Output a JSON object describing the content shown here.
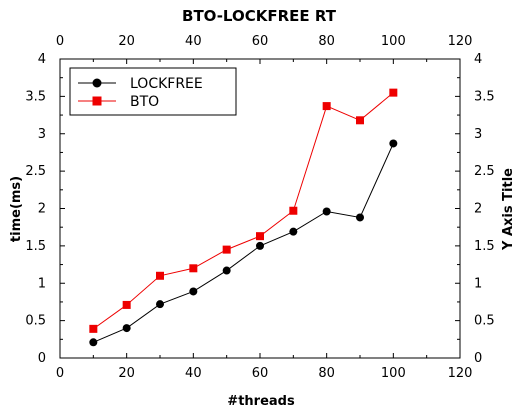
{
  "chart_data": {
    "type": "line",
    "title": "BTO-LOCKFREE RT",
    "xlabel": "#threads",
    "ylabel": "time(ms)",
    "ylabel_right": "Y Axis Title",
    "xlim": [
      0,
      120
    ],
    "ylim": [
      0,
      4
    ],
    "x_ticks": [
      "0",
      "20",
      "40",
      "60",
      "80",
      "100",
      "120"
    ],
    "y_ticks": [
      "0",
      "0.5",
      "1",
      "1.5",
      "2",
      "2.5",
      "3",
      "3.5",
      "4"
    ],
    "grid": false,
    "legend_position": "top-left",
    "x": [
      10,
      20,
      30,
      40,
      50,
      60,
      70,
      80,
      90,
      100
    ],
    "series": [
      {
        "name": "LOCKFREE",
        "color": "#000000",
        "marker": "circle",
        "values": [
          0.21,
          0.4,
          0.72,
          0.89,
          1.17,
          1.5,
          1.69,
          1.96,
          1.88,
          2.87
        ]
      },
      {
        "name": "BTO",
        "color": "#ee0000",
        "marker": "square",
        "values": [
          0.39,
          0.71,
          1.1,
          1.2,
          1.45,
          1.63,
          1.97,
          3.37,
          3.18,
          3.55
        ]
      }
    ]
  }
}
